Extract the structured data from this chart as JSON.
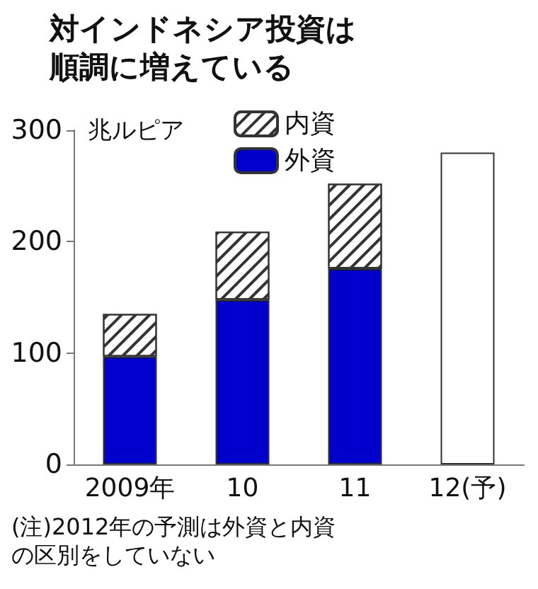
{
  "chart_data": {
    "type": "bar",
    "title": "対インドネシア投資は順調に増えている",
    "ylabel": "兆ルピア",
    "categories": [
      "2009年",
      "10",
      "11",
      "12(予)"
    ],
    "series": [
      {
        "name": "外資",
        "color": "#0000cc",
        "values": [
          97,
          148,
          176,
          null
        ]
      },
      {
        "name": "内資",
        "color": "#ffffff",
        "values": [
          38,
          61,
          76,
          null
        ]
      },
      {
        "color": "#ffffff",
        "values": [
          null,
          null,
          null,
          280
        ]
      }
    ],
    "stacked": true,
    "ylim": [
      0,
      300
    ],
    "yticks": [
      0,
      100,
      200,
      300
    ],
    "grid": false,
    "legend": "top",
    "annotations": [
      "(注)2012年の予測は外資と内資の区別をしていない"
    ]
  }
}
